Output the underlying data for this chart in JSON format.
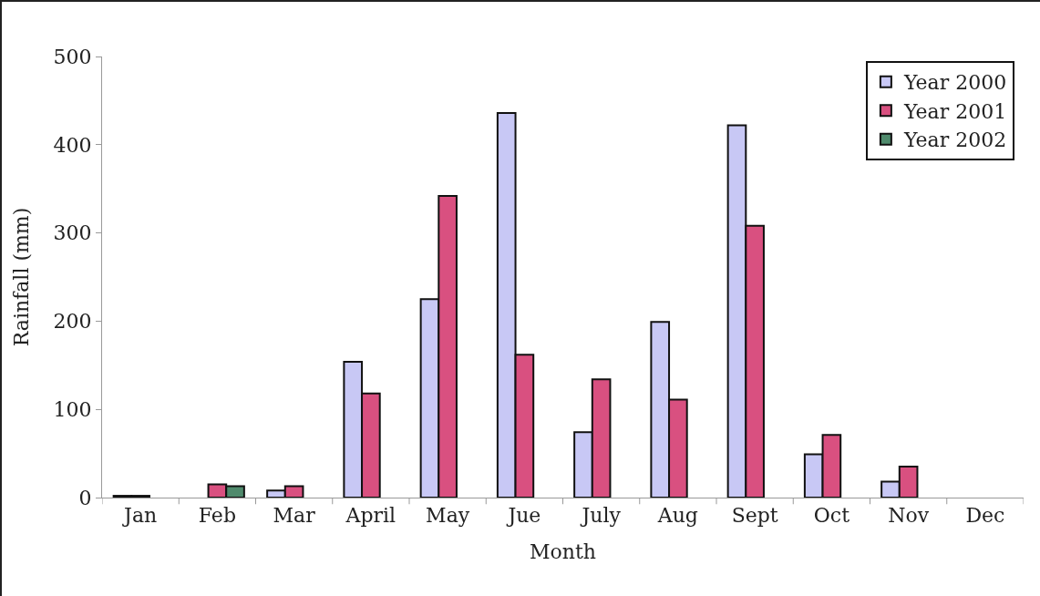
{
  "chart_data": {
    "type": "bar",
    "xlabel": "Month",
    "ylabel": "Rainfall (mm)",
    "categories": [
      "Jan",
      "Feb",
      "Mar",
      "April",
      "May",
      "Jue",
      "July",
      "Aug",
      "Sept",
      "Oct",
      "Nov",
      "Dec"
    ],
    "series": [
      {
        "name": "Year 2000",
        "color": "#c8c8f5",
        "values": [
          2,
          null,
          8,
          154,
          225,
          436,
          74,
          199,
          422,
          49,
          18,
          null
        ]
      },
      {
        "name": "Year 2001",
        "color": "#d95080",
        "values": [
          2,
          15,
          13,
          118,
          342,
          162,
          134,
          111,
          308,
          71,
          35,
          null
        ]
      },
      {
        "name": "Year 2002",
        "color": "#4f8a6c",
        "values": [
          null,
          13,
          null,
          null,
          null,
          null,
          null,
          null,
          null,
          null,
          null,
          null
        ]
      }
    ],
    "ylim": [
      0,
      500
    ],
    "yticks": [
      0,
      100,
      200,
      300,
      400,
      500
    ],
    "grid": false,
    "legend": "top right"
  }
}
